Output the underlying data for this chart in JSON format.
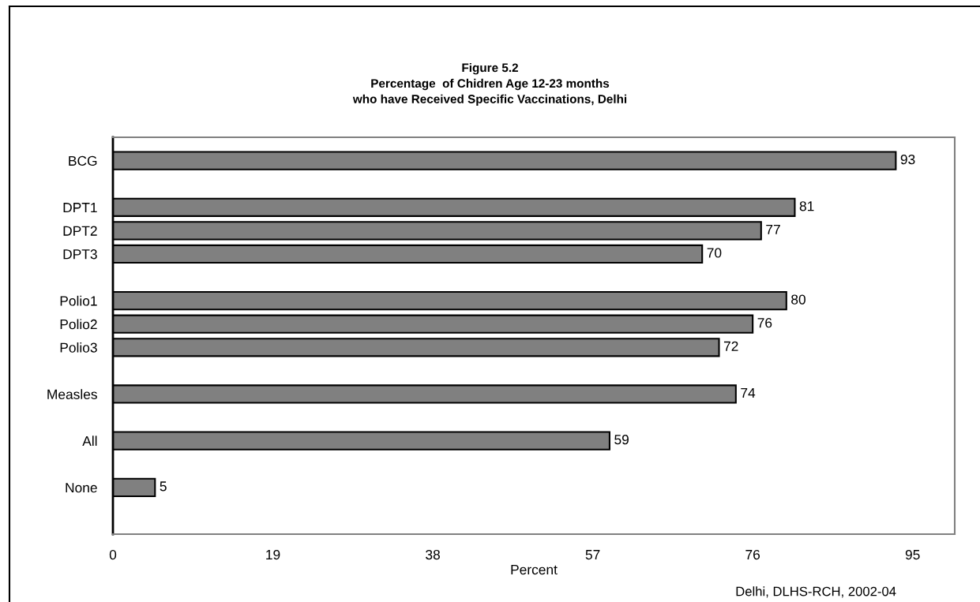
{
  "chart_data": {
    "type": "bar",
    "orientation": "horizontal",
    "title": "Figure 5.2\nPercentage  of Chidren Age 12-23 months\nwho have Received Specific Vaccinations, Delhi",
    "categories": [
      "BCG",
      null,
      "DPT1",
      "DPT2",
      "DPT3",
      null,
      "Polio1",
      "Polio2",
      "Polio3",
      null,
      "Measles",
      null,
      "All",
      null,
      "None",
      null
    ],
    "values": [
      93,
      null,
      81,
      77,
      70,
      null,
      80,
      76,
      72,
      null,
      74,
      null,
      59,
      null,
      5,
      null
    ],
    "color": "#808080",
    "data_labels": true,
    "xlabel": "Percent",
    "xlim": [
      0,
      100
    ],
    "xticks": [
      0,
      19,
      38,
      57,
      76,
      95
    ],
    "grid": false,
    "annotations": [
      "Delhi, DLHS-RCH, 2002-04"
    ]
  }
}
